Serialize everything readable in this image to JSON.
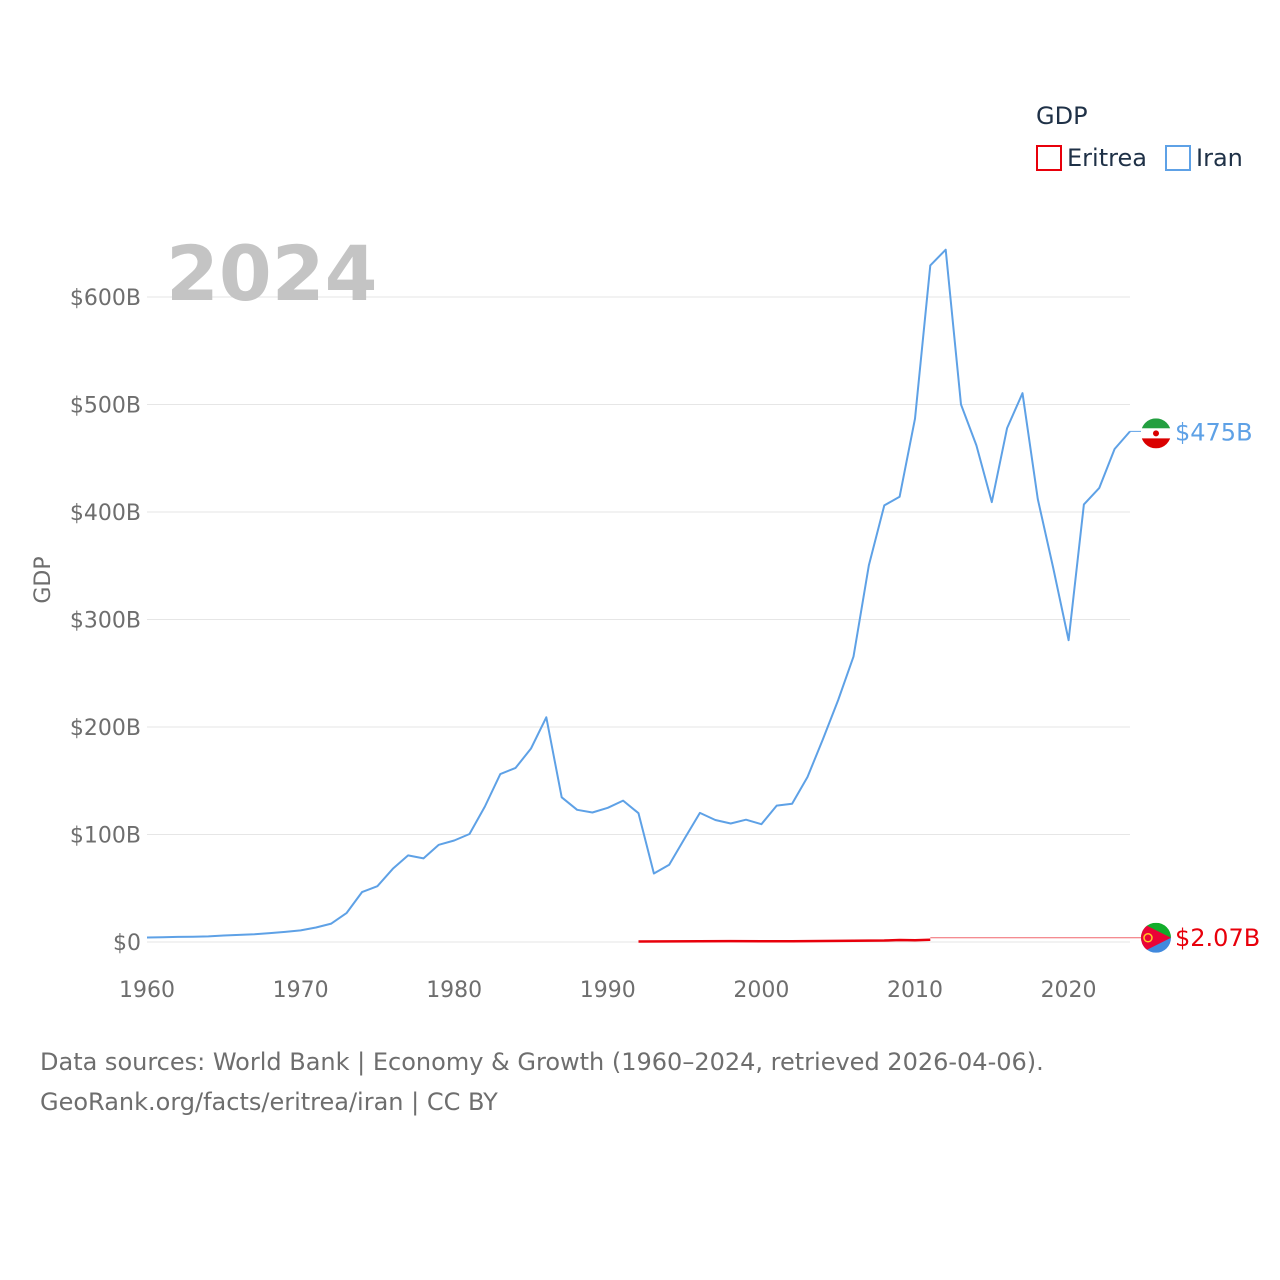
{
  "chart_data": {
    "type": "line",
    "title": "GDP",
    "ylabel": "GDP",
    "xlabel": "",
    "year_label": "2024",
    "xlim": [
      1960,
      2024
    ],
    "ylim": [
      0,
      650
    ],
    "x_ticks": [
      "1960",
      "1970",
      "1980",
      "1990",
      "2000",
      "2010",
      "2020"
    ],
    "x_tick_values": [
      1960,
      1970,
      1980,
      1990,
      2000,
      2010,
      2020
    ],
    "y_ticks": [
      "$0",
      "$100B",
      "$200B",
      "$300B",
      "$400B",
      "$500B",
      "$600B"
    ],
    "y_tick_values": [
      0,
      100,
      200,
      300,
      400,
      500,
      600
    ],
    "units": "billion USD",
    "legend": {
      "title": "GDP",
      "position": "top-right"
    },
    "series": [
      {
        "name": "Eritrea",
        "color": "#e8000b",
        "end_label": "$2.07B",
        "end_value": 2.07,
        "flag_icon": "eritrea-flag-icon",
        "points": [
          [
            1992,
            0.5
          ],
          [
            1994,
            0.6
          ],
          [
            1996,
            0.7
          ],
          [
            1998,
            0.8
          ],
          [
            2000,
            0.7
          ],
          [
            2002,
            0.7
          ],
          [
            2004,
            0.9
          ],
          [
            2006,
            1.1
          ],
          [
            2008,
            1.4
          ],
          [
            2009,
            1.9
          ],
          [
            2010,
            1.7
          ],
          [
            2011,
            2.07
          ]
        ]
      },
      {
        "name": "Iran",
        "color": "#5ea1e6",
        "end_label": "$475B",
        "end_value": 475,
        "flag_icon": "iran-flag-icon",
        "points": [
          [
            1960,
            4.2
          ],
          [
            1961,
            4.4
          ],
          [
            1962,
            4.7
          ],
          [
            1963,
            4.9
          ],
          [
            1964,
            5.2
          ],
          [
            1965,
            6.0
          ],
          [
            1966,
            6.6
          ],
          [
            1967,
            7.3
          ],
          [
            1968,
            8.3
          ],
          [
            1969,
            9.4
          ],
          [
            1970,
            10.8
          ],
          [
            1971,
            13.5
          ],
          [
            1972,
            17.1
          ],
          [
            1973,
            27.1
          ],
          [
            1974,
            46.4
          ],
          [
            1975,
            51.9
          ],
          [
            1976,
            68.1
          ],
          [
            1977,
            80.6
          ],
          [
            1978,
            77.8
          ],
          [
            1979,
            90.4
          ],
          [
            1980,
            94.4
          ],
          [
            1981,
            100.5
          ],
          [
            1982,
            126.0
          ],
          [
            1983,
            156.2
          ],
          [
            1984,
            162.0
          ],
          [
            1985,
            180.0
          ],
          [
            1986,
            209.0
          ],
          [
            1987,
            134.6
          ],
          [
            1988,
            123.0
          ],
          [
            1989,
            120.5
          ],
          [
            1990,
            124.8
          ],
          [
            1991,
            131.5
          ],
          [
            1992,
            119.8
          ],
          [
            1993,
            63.7
          ],
          [
            1994,
            71.8
          ],
          [
            1995,
            96.3
          ],
          [
            1996,
            120.1
          ],
          [
            1997,
            113.5
          ],
          [
            1998,
            110.2
          ],
          [
            1999,
            113.8
          ],
          [
            2000,
            109.6
          ],
          [
            2001,
            126.9
          ],
          [
            2002,
            128.6
          ],
          [
            2003,
            153.5
          ],
          [
            2004,
            188.4
          ],
          [
            2005,
            225.1
          ],
          [
            2006,
            265.5
          ],
          [
            2007,
            350.6
          ],
          [
            2008,
            406.1
          ],
          [
            2009,
            414.1
          ],
          [
            2010,
            486.8
          ],
          [
            2011,
            629.4
          ],
          [
            2012,
            644.0
          ],
          [
            2013,
            500.0
          ],
          [
            2014,
            462.0
          ],
          [
            2015,
            409.2
          ],
          [
            2016,
            478.0
          ],
          [
            2017,
            510.5
          ],
          [
            2018,
            412.0
          ],
          [
            2019,
            348.0
          ],
          [
            2020,
            280.7
          ],
          [
            2021,
            407.1
          ],
          [
            2022,
            422.4
          ],
          [
            2023,
            458.6
          ],
          [
            2024,
            475.0
          ]
        ]
      }
    ]
  },
  "footer": {
    "line1": "Data sources: World Bank | Economy & Growth (1960–2024, retrieved 2026-04-06).",
    "line2": "GeoRank.org/facts/eritrea/iran | CC BY"
  }
}
